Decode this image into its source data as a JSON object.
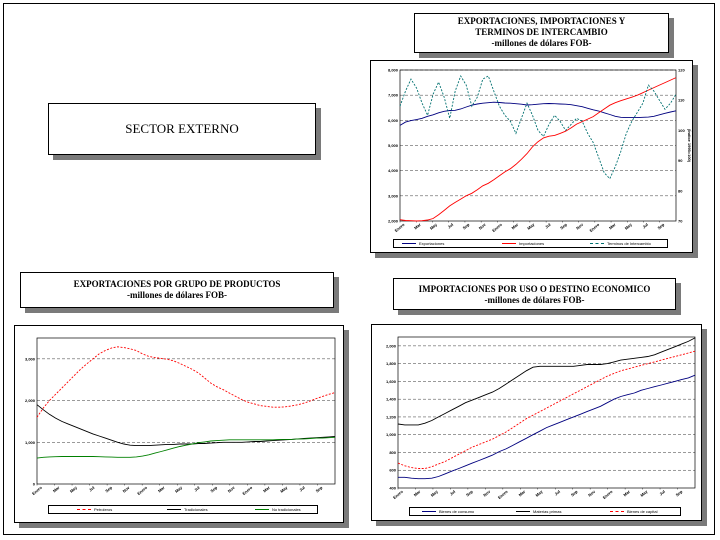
{
  "page": {
    "sector_title": "SECTOR EXTERNO"
  },
  "titles": {
    "trade": {
      "line1": "EXPORTACIONES, IMPORTACIONES Y",
      "line2": "TERMINOS DE INTERCAMBIO",
      "line3": "-millones de dólares FOB-"
    },
    "exports": {
      "line1": "EXPORTACIONES POR GRUPO DE PRODUCTOS",
      "line2": "-millones de dólares FOB-"
    },
    "imports": {
      "line1": "IMPORTACIONES  POR USO O DESTINO ECONOMICO",
      "line2": "-millones de dólares FOB-"
    }
  },
  "chart_data": [
    {
      "type": "line",
      "title": "EXPORTACIONES, IMPORTACIONES Y TERMINOS DE INTERCAMBIO",
      "subtitle": "-millones de dólares FOB-",
      "x_tick_labels": [
        "Enero",
        "Mar",
        "May",
        "Jul",
        "Sep",
        "Nov",
        "Enero",
        "Mar",
        "May",
        "Jul",
        "Sep",
        "Nov",
        "Enero",
        "Mar",
        "May",
        "Jul",
        "Sep"
      ],
      "y_tick_labels": [
        "2,000",
        "3,000",
        "4,000",
        "5,000",
        "6,000",
        "7,000",
        "8,000"
      ],
      "ylim": [
        2000,
        8000
      ],
      "y2_tick_labels": [
        "70",
        "80",
        "90",
        "100",
        "110",
        "120"
      ],
      "y2lim": [
        70,
        120
      ],
      "y2label": "(Índice 1995=100)",
      "legend_position": "bottom",
      "series": [
        {
          "name": "Exportaciones",
          "axis": "left",
          "color": "#00007f",
          "dash": "solid",
          "values": [
            5800,
            5930,
            5990,
            6030,
            6080,
            6160,
            6220,
            6300,
            6360,
            6390,
            6400,
            6450,
            6530,
            6600,
            6650,
            6680,
            6700,
            6720,
            6710,
            6690,
            6680,
            6660,
            6640,
            6610,
            6620,
            6640,
            6660,
            6670,
            6660,
            6650,
            6640,
            6620,
            6580,
            6540,
            6480,
            6420,
            6370,
            6300,
            6230,
            6160,
            6120,
            6110,
            6110,
            6110,
            6120,
            6130,
            6160,
            6220,
            6280,
            6330,
            6380
          ]
        },
        {
          "name": "Importaciones",
          "axis": "left",
          "color": "#ff0000",
          "dash": "solid",
          "values": [
            2050,
            2020,
            2010,
            2000,
            2010,
            2040,
            2100,
            2250,
            2420,
            2600,
            2740,
            2870,
            3000,
            3100,
            3240,
            3400,
            3500,
            3640,
            3800,
            3950,
            4080,
            4250,
            4450,
            4680,
            4950,
            5150,
            5300,
            5370,
            5400,
            5480,
            5570,
            5700,
            5850,
            5950,
            6050,
            6150,
            6300,
            6450,
            6600,
            6700,
            6780,
            6850,
            6920,
            7000,
            7100,
            7200,
            7300,
            7400,
            7500,
            7600,
            7700
          ]
        },
        {
          "name": "Terminos de Intercambio",
          "axis": "right",
          "color": "#007070",
          "dash": "dashed",
          "values": [
            108,
            113,
            117,
            114,
            109,
            105,
            112,
            116,
            111,
            104,
            113,
            118,
            115,
            108,
            111,
            117,
            118,
            113,
            108,
            105,
            103,
            99,
            104,
            109,
            105,
            100,
            98,
            102,
            105,
            103,
            100,
            102,
            104,
            103,
            99,
            96,
            91,
            86,
            84,
            88,
            93,
            99,
            103,
            106,
            109,
            115,
            113,
            110,
            107,
            109,
            112
          ]
        }
      ]
    },
    {
      "type": "line",
      "title": "EXPORTACIONES POR GRUPO DE PRODUCTOS",
      "subtitle": "-millones de dólares FOB-",
      "x_tick_labels": [
        "Enero",
        "Mar",
        "May",
        "Jul",
        "Sep",
        "Nov",
        "Enero",
        "Mar",
        "May",
        "Jul",
        "Sep",
        "Nov",
        "Enero",
        "Mar",
        "May",
        "Jul",
        "Sep"
      ],
      "y_tick_labels": [
        "0",
        "1,000",
        "2,000",
        "3,000"
      ],
      "ylim": [
        0,
        3500
      ],
      "legend_position": "bottom",
      "series": [
        {
          "name": "Petroleros",
          "color": "#ff0000",
          "dash": "dashed",
          "values": [
            1600,
            1820,
            2000,
            2150,
            2300,
            2450,
            2600,
            2750,
            2880,
            3000,
            3120,
            3200,
            3260,
            3290,
            3270,
            3240,
            3200,
            3120,
            3060,
            3030,
            3010,
            2990,
            2950,
            2890,
            2820,
            2750,
            2660,
            2540,
            2420,
            2330,
            2260,
            2180,
            2100,
            2020,
            1960,
            1920,
            1880,
            1860,
            1840,
            1840,
            1850,
            1870,
            1900,
            1940,
            1990,
            2050,
            2100,
            2150,
            2190
          ]
        },
        {
          "name": "Tradicionales",
          "color": "#000000",
          "dash": "solid",
          "values": [
            1900,
            1780,
            1670,
            1580,
            1500,
            1440,
            1380,
            1320,
            1260,
            1200,
            1150,
            1100,
            1050,
            1000,
            960,
            930,
            920,
            920,
            920,
            930,
            940,
            950,
            950,
            960,
            960,
            960,
            970,
            970,
            980,
            990,
            1000,
            1000,
            1000,
            1000,
            1010,
            1020,
            1020,
            1030,
            1040,
            1050,
            1060,
            1070,
            1080,
            1090,
            1100,
            1110,
            1120,
            1130,
            1140
          ]
        },
        {
          "name": "No tradicionales",
          "color": "#008000",
          "dash": "solid",
          "values": [
            620,
            640,
            650,
            655,
            660,
            660,
            660,
            660,
            660,
            660,
            655,
            650,
            645,
            640,
            640,
            640,
            650,
            670,
            700,
            740,
            780,
            820,
            860,
            900,
            930,
            960,
            990,
            1010,
            1030,
            1040,
            1050,
            1060,
            1060,
            1060,
            1060,
            1060,
            1060,
            1060,
            1060,
            1070,
            1070,
            1070,
            1080,
            1080,
            1090,
            1100,
            1100,
            1110,
            1120
          ]
        }
      ]
    },
    {
      "type": "line",
      "title": "IMPORTACIONES  POR USO O DESTINO ECONOMICO",
      "subtitle": "-millones de dólares FOB-",
      "x_tick_labels": [
        "Enero",
        "Mar",
        "May",
        "Jul",
        "Sep",
        "Nov",
        "Enero",
        "Mar",
        "May",
        "Jul",
        "Sep",
        "Nov",
        "Enero",
        "Mar",
        "May",
        "Jul",
        "Sep"
      ],
      "y_tick_labels": [
        "400",
        "600",
        "800",
        "1,000",
        "1,200",
        "1,400",
        "1,600",
        "1,800",
        "2,000"
      ],
      "ylim": [
        400,
        2100
      ],
      "legend_position": "bottom",
      "series": [
        {
          "name": "Bienes de consumo",
          "color": "#00007f",
          "dash": "solid",
          "values": [
            520,
            520,
            510,
            505,
            505,
            510,
            530,
            560,
            590,
            620,
            650,
            680,
            710,
            740,
            770,
            810,
            840,
            880,
            920,
            960,
            1000,
            1040,
            1080,
            1110,
            1140,
            1170,
            1200,
            1230,
            1260,
            1290,
            1320,
            1360,
            1400,
            1430,
            1450,
            1470,
            1500,
            1520,
            1540,
            1560,
            1580,
            1600,
            1620,
            1640,
            1670
          ]
        },
        {
          "name": "Materias primas",
          "color": "#000000",
          "dash": "solid",
          "values": [
            1120,
            1110,
            1110,
            1110,
            1130,
            1160,
            1200,
            1240,
            1280,
            1320,
            1360,
            1390,
            1420,
            1450,
            1480,
            1520,
            1570,
            1620,
            1670,
            1720,
            1760,
            1770,
            1770,
            1770,
            1770,
            1770,
            1770,
            1780,
            1790,
            1790,
            1790,
            1800,
            1820,
            1840,
            1850,
            1860,
            1870,
            1880,
            1900,
            1930,
            1960,
            1990,
            2020,
            2050,
            2090
          ]
        },
        {
          "name": "Bienes de capital",
          "color": "#ff0000",
          "dash": "dashed",
          "values": [
            680,
            650,
            630,
            620,
            620,
            640,
            670,
            700,
            740,
            780,
            820,
            860,
            890,
            920,
            950,
            990,
            1030,
            1080,
            1130,
            1180,
            1220,
            1260,
            1300,
            1340,
            1380,
            1420,
            1460,
            1500,
            1540,
            1580,
            1620,
            1660,
            1690,
            1720,
            1740,
            1760,
            1780,
            1800,
            1820,
            1840,
            1860,
            1880,
            1900,
            1920,
            1940
          ]
        }
      ]
    }
  ]
}
